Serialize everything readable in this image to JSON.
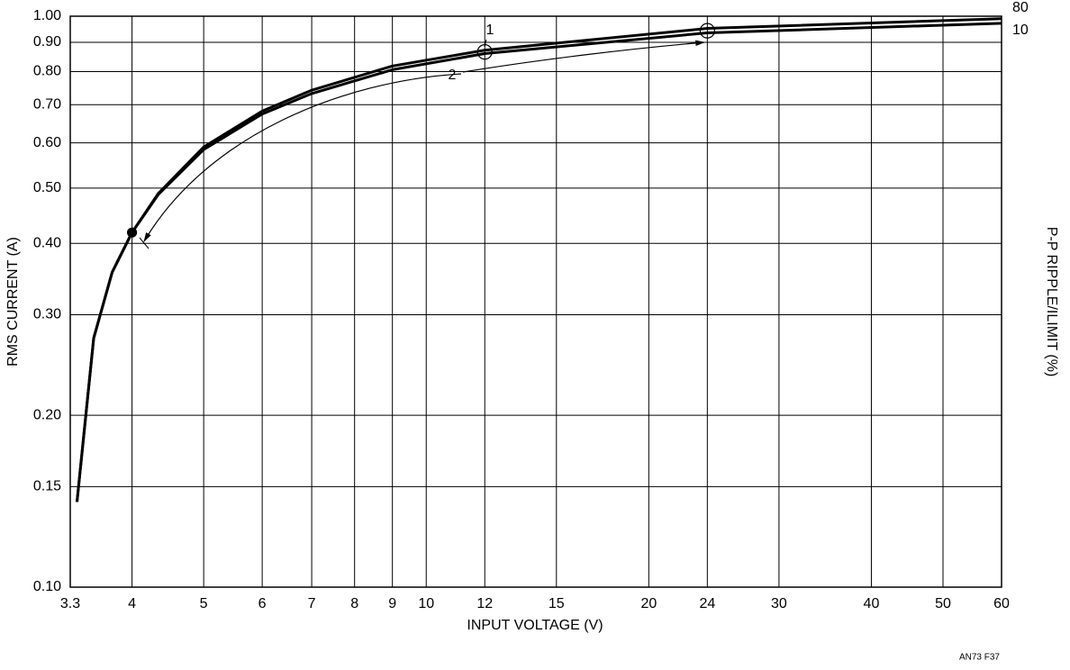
{
  "chart_data": {
    "type": "line",
    "xlabel": "INPUT VOLTAGE (V)",
    "ylabel": "RMS CURRENT (A)",
    "y2label": "P-P RIPPLE/ILIMIT (%)",
    "footnote": "AN73 F37",
    "xscale": "log",
    "yscale": "log",
    "grid": true,
    "xlim": [
      3.3,
      60
    ],
    "ylim": [
      0.1,
      1.0
    ],
    "xticks": [
      3.3,
      4,
      5,
      6,
      7,
      8,
      9,
      10,
      12,
      15,
      20,
      24,
      30,
      40,
      50,
      60
    ],
    "yticks": [
      {
        "value": 0.1,
        "label": "0.10"
      },
      0.15,
      {
        "value": 0.2,
        "label": "0.20"
      },
      {
        "value": 0.3,
        "label": "0.30"
      },
      {
        "value": 0.4,
        "label": "0.40"
      },
      {
        "value": 0.5,
        "label": "0.50"
      },
      {
        "value": 0.6,
        "label": "0.60"
      },
      {
        "value": 0.7,
        "label": "0.70"
      },
      {
        "value": 0.8,
        "label": "0.80"
      },
      {
        "value": 0.9,
        "label": "0.90"
      },
      {
        "value": 1.0,
        "label": "1.00"
      }
    ],
    "x": [
      3.37,
      3.55,
      3.76,
      4,
      4.34,
      5,
      6,
      7,
      9,
      12,
      24,
      60
    ],
    "series": [
      {
        "name": "80",
        "color": "#000000",
        "values": [
          0.141,
          0.273,
          0.356,
          0.418,
          0.489,
          0.59,
          0.682,
          0.742,
          0.818,
          0.872,
          0.952,
          0.99
        ]
      },
      {
        "name": "10",
        "color": "#000000",
        "values": [
          0.141,
          0.273,
          0.356,
          0.418,
          0.487,
          0.584,
          0.674,
          0.732,
          0.806,
          0.86,
          0.935,
          0.972
        ]
      }
    ],
    "markers": [
      {
        "x": 4,
        "y": 0.418,
        "filled": true
      },
      {
        "x": 12,
        "y": 0.866,
        "filled": false
      },
      {
        "x": 24,
        "y": 0.943,
        "filled": false
      }
    ],
    "annotations": [
      "1",
      "2"
    ]
  }
}
